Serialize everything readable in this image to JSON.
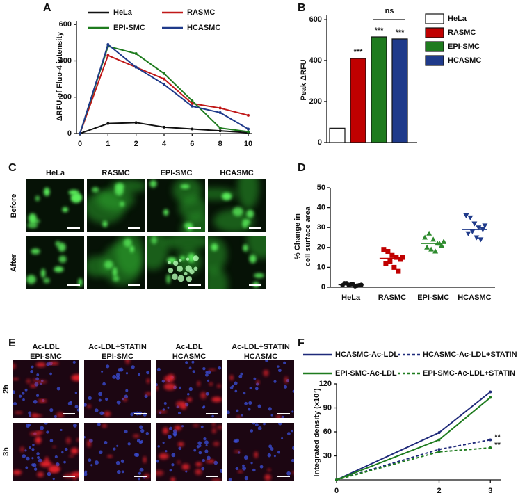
{
  "chart_data": [
    {
      "type": "line",
      "label": "A",
      "ylabel": "ΔRFU of Fluo-4 intensity",
      "categories": [
        "0",
        "1",
        "2",
        "4",
        "6",
        "8",
        "10"
      ],
      "ylim": [
        0,
        620
      ],
      "yticks": [
        0,
        200,
        400,
        600
      ],
      "series": [
        {
          "name": "HeLa",
          "color": "#111111",
          "values": [
            0,
            55,
            60,
            35,
            25,
            15,
            5
          ]
        },
        {
          "name": "RASMC",
          "color": "#c01818",
          "values": [
            0,
            430,
            365,
            300,
            165,
            140,
            100
          ]
        },
        {
          "name": "EPI-SMC",
          "color": "#1e7b1e",
          "values": [
            0,
            480,
            440,
            330,
            180,
            30,
            10
          ]
        },
        {
          "name": "HCASMC",
          "color": "#1f3a8a",
          "values": [
            0,
            490,
            365,
            270,
            150,
            115,
            25
          ]
        }
      ]
    },
    {
      "type": "bar",
      "label": "B",
      "ylabel": "Peak ΔRFU",
      "categories": [
        "HeLa",
        "RASMC",
        "EPI-SMC",
        "HCASMC"
      ],
      "values": [
        70,
        410,
        515,
        505
      ],
      "colors": [
        "#ffffff",
        "#c00000",
        "#1e7b1e",
        "#1f3a8a"
      ],
      "significance": [
        null,
        "***",
        "***",
        "***"
      ],
      "comparison_label": "ns",
      "ylim": [
        0,
        620
      ],
      "yticks": [
        0,
        200,
        400,
        600
      ]
    },
    {
      "type": "dot",
      "label": "D",
      "ylabel": [
        "% Change in",
        "cell surface area"
      ],
      "categories": [
        "HeLa",
        "RASMC",
        "EPI-SMC",
        "HCASMC"
      ],
      "groups": [
        {
          "color": "#111111",
          "marker": "circle",
          "values": [
            1,
            2,
            1.5,
            0.5,
            1,
            2,
            1,
            1.5,
            0.8,
            1.2
          ],
          "mean": 1.3
        },
        {
          "color": "#c00000",
          "marker": "square",
          "values": [
            19,
            18,
            16,
            15,
            14,
            12,
            13,
            10,
            8,
            15
          ],
          "mean": 14.5
        },
        {
          "color": "#2e8b2e",
          "marker": "triangle-up",
          "values": [
            25,
            27,
            24,
            22,
            21,
            20,
            19,
            18,
            22,
            23
          ],
          "mean": 22
        },
        {
          "color": "#1f3a8a",
          "marker": "triangle-down",
          "values": [
            36,
            35,
            32,
            30,
            29,
            27,
            28,
            25,
            24,
            31
          ],
          "mean": 29
        }
      ],
      "ylim": [
        0,
        50
      ],
      "yticks": [
        0,
        10,
        20,
        30,
        40,
        50
      ]
    },
    {
      "type": "line",
      "label": "F",
      "ylabel": "Integrated density (x10³)",
      "x": [
        0,
        2,
        3
      ],
      "xlim": [
        0,
        3.2
      ],
      "xticks": [
        0,
        2,
        3
      ],
      "ylim": [
        0,
        120
      ],
      "yticks": [
        30,
        60,
        90,
        120
      ],
      "series": [
        {
          "name": "HCASMC-Ac-LDL",
          "color": "#1f2a7a",
          "dash": false,
          "values": [
            0,
            59,
            110
          ]
        },
        {
          "name": "HCASMC-Ac-LDL+STATIN",
          "color": "#1f2a7a",
          "dash": true,
          "values": [
            0,
            38,
            50
          ],
          "annotation": "**"
        },
        {
          "name": "EPI-SMC-Ac-LDL",
          "color": "#1e7b1e",
          "dash": false,
          "values": [
            0,
            50,
            103
          ]
        },
        {
          "name": "EPI-SMC-Ac-LDL+STATIN",
          "color": "#1e7b1e",
          "dash": true,
          "values": [
            0,
            35,
            40
          ],
          "annotation": "**"
        }
      ]
    }
  ],
  "image_panels": [
    {
      "label": "C",
      "columns": [
        "HeLa",
        "RASMC",
        "EPI-SMC",
        "HCASMC"
      ],
      "rows": [
        "Before",
        "After"
      ]
    },
    {
      "label": "E",
      "columns": [
        [
          "Ac-LDL",
          "EPI-SMC"
        ],
        [
          "Ac-LDL+STATIN",
          "EPI-SMC"
        ],
        [
          "Ac-LDL",
          "HCASMC"
        ],
        [
          "Ac-LDL+STATIN",
          "HCASMC"
        ]
      ],
      "rows": [
        "2h",
        "3h"
      ]
    }
  ]
}
